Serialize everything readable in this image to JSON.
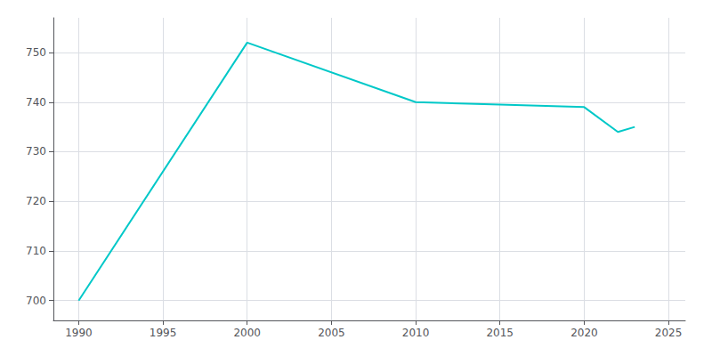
{
  "chart_data": {
    "type": "line",
    "x": [
      1990,
      2000,
      2010,
      2015,
      2020,
      2022,
      2023
    ],
    "values": [
      700,
      752,
      740,
      739.5,
      739,
      734,
      735
    ],
    "color": "#00C8C8",
    "xlim": [
      1988.5,
      2026
    ],
    "ylim": [
      696,
      757
    ],
    "xticks": [
      1990,
      1995,
      2000,
      2005,
      2010,
      2015,
      2020,
      2025
    ],
    "yticks": [
      700,
      710,
      720,
      730,
      740,
      750
    ],
    "grid": true
  }
}
